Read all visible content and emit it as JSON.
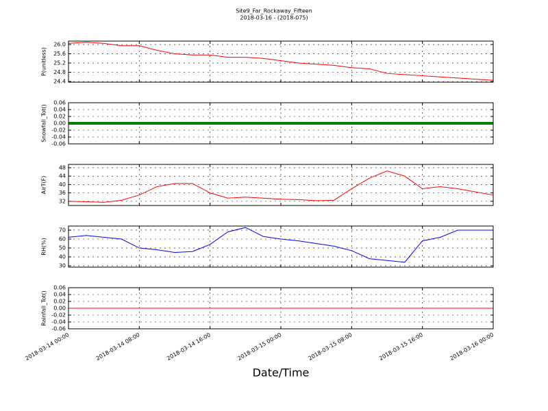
{
  "chart_data": [
    {
      "type": "line",
      "title": "Site9_Far_Rockaway_Fifteen",
      "subtitle": "2018-03-16 - (2018-075)",
      "ylabel": "P(unitless)",
      "x": [
        "2018-03-14 00:00",
        "2018-03-14 02:00",
        "2018-03-14 04:00",
        "2018-03-14 06:00",
        "2018-03-14 08:00",
        "2018-03-14 10:00",
        "2018-03-14 12:00",
        "2018-03-14 14:00",
        "2018-03-14 16:00",
        "2018-03-14 18:00",
        "2018-03-14 20:00",
        "2018-03-14 22:00",
        "2018-03-15 00:00",
        "2018-03-15 02:00",
        "2018-03-15 04:00",
        "2018-03-15 06:00",
        "2018-03-15 08:00",
        "2018-03-15 10:00",
        "2018-03-15 12:00",
        "2018-03-15 14:00",
        "2018-03-15 16:00",
        "2018-03-15 18:00",
        "2018-03-15 20:00",
        "2018-03-15 22:00",
        "2018-03-16 00:00"
      ],
      "values": [
        26.05,
        26.1,
        26.05,
        25.95,
        25.95,
        25.75,
        25.6,
        25.55,
        25.55,
        25.45,
        25.45,
        25.4,
        25.3,
        25.2,
        25.15,
        25.1,
        25.0,
        24.95,
        24.75,
        24.7,
        24.65,
        24.6,
        24.55,
        24.5,
        24.45
      ],
      "color": "#ff0000",
      "line_width": 1,
      "xlim": [
        "2018-03-14 00:00",
        "2018-03-16 00:00"
      ],
      "xticks": [
        "2018-03-14 00:00",
        "2018-03-14 08:00",
        "2018-03-14 16:00",
        "2018-03-15 00:00",
        "2018-03-15 08:00",
        "2018-03-15 16:00",
        "2018-03-16 00:00"
      ],
      "ylim": [
        24.37,
        26.15
      ],
      "yticks": [
        24.4,
        24.8,
        25.2,
        25.6,
        {
          "value": 26,
          "label": "26.0"
        }
      ],
      "grid": true
    },
    {
      "type": "line",
      "ylabel": "Snowfall_Tot()",
      "x": [
        "2018-03-14 00:00",
        "2018-03-14 02:00",
        "2018-03-14 04:00",
        "2018-03-14 06:00",
        "2018-03-14 08:00",
        "2018-03-14 10:00",
        "2018-03-14 12:00",
        "2018-03-14 14:00",
        "2018-03-14 16:00",
        "2018-03-14 18:00",
        "2018-03-14 20:00",
        "2018-03-14 22:00",
        "2018-03-15 00:00",
        "2018-03-15 02:00",
        "2018-03-15 04:00",
        "2018-03-15 06:00",
        "2018-03-15 08:00",
        "2018-03-15 10:00",
        "2018-03-15 12:00",
        "2018-03-15 14:00",
        "2018-03-15 16:00",
        "2018-03-15 18:00",
        "2018-03-15 20:00",
        "2018-03-15 22:00",
        "2018-03-16 00:00"
      ],
      "values": [
        0,
        0,
        0,
        0,
        0,
        0,
        0,
        0,
        0,
        0,
        0,
        0,
        0,
        0,
        0,
        0,
        0,
        0,
        0,
        0,
        0,
        0,
        0,
        0,
        0
      ],
      "color": "#008000",
      "line_width": 4,
      "xlim": [
        "2018-03-14 00:00",
        "2018-03-16 00:00"
      ],
      "xticks": [
        "2018-03-14 00:00",
        "2018-03-14 08:00",
        "2018-03-14 16:00",
        "2018-03-15 00:00",
        "2018-03-15 08:00",
        "2018-03-15 16:00",
        "2018-03-16 00:00"
      ],
      "ylim": [
        -0.06,
        0.06
      ],
      "yticks": [
        -0.06,
        -0.04,
        -0.02,
        {
          "value": 0,
          "label": "0.00"
        },
        0.02,
        0.04,
        0.06
      ],
      "grid": true
    },
    {
      "type": "line",
      "ylabel": "AirT(F)",
      "x": [
        "2018-03-14 00:00",
        "2018-03-14 02:00",
        "2018-03-14 04:00",
        "2018-03-14 06:00",
        "2018-03-14 08:00",
        "2018-03-14 10:00",
        "2018-03-14 12:00",
        "2018-03-14 14:00",
        "2018-03-14 16:00",
        "2018-03-14 18:00",
        "2018-03-14 20:00",
        "2018-03-14 22:00",
        "2018-03-15 00:00",
        "2018-03-15 02:00",
        "2018-03-15 04:00",
        "2018-03-15 06:00",
        "2018-03-15 08:00",
        "2018-03-15 10:00",
        "2018-03-15 12:00",
        "2018-03-15 14:00",
        "2018-03-15 16:00",
        "2018-03-15 18:00",
        "2018-03-15 20:00",
        "2018-03-15 22:00",
        "2018-03-16 00:00"
      ],
      "values": [
        32,
        31.8,
        31.5,
        32.5,
        35,
        39,
        40.5,
        40.5,
        36,
        33.5,
        34,
        33.5,
        33,
        32.8,
        32.3,
        32.5,
        38,
        43,
        46.5,
        44,
        38,
        39,
        38,
        36.5,
        35
      ],
      "color": "#ff0000",
      "line_width": 1,
      "xlim": [
        "2018-03-14 00:00",
        "2018-03-16 00:00"
      ],
      "xticks": [
        "2018-03-14 00:00",
        "2018-03-14 08:00",
        "2018-03-14 16:00",
        "2018-03-15 00:00",
        "2018-03-15 08:00",
        "2018-03-15 16:00",
        "2018-03-16 00:00"
      ],
      "ylim": [
        30,
        49.6
      ],
      "yticks": [
        32,
        36,
        40,
        44,
        48
      ],
      "grid": true
    },
    {
      "type": "line",
      "ylabel": "RH(%)",
      "x": [
        "2018-03-14 00:00",
        "2018-03-14 02:00",
        "2018-03-14 04:00",
        "2018-03-14 06:00",
        "2018-03-14 08:00",
        "2018-03-14 10:00",
        "2018-03-14 12:00",
        "2018-03-14 14:00",
        "2018-03-14 16:00",
        "2018-03-14 18:00",
        "2018-03-14 20:00",
        "2018-03-14 22:00",
        "2018-03-15 00:00",
        "2018-03-15 02:00",
        "2018-03-15 04:00",
        "2018-03-15 06:00",
        "2018-03-15 08:00",
        "2018-03-15 10:00",
        "2018-03-15 12:00",
        "2018-03-15 14:00",
        "2018-03-15 16:00",
        "2018-03-15 18:00",
        "2018-03-15 20:00",
        "2018-03-15 22:00",
        "2018-03-16 00:00"
      ],
      "values": [
        62,
        64,
        62,
        60,
        50,
        48,
        45,
        46,
        54,
        68,
        73,
        63,
        60,
        58,
        55,
        52,
        47,
        38,
        36,
        34,
        58,
        62,
        70,
        70,
        70
      ],
      "color": "#0000ff",
      "line_width": 1,
      "xlim": [
        "2018-03-14 00:00",
        "2018-03-16 00:00"
      ],
      "xticks": [
        "2018-03-14 00:00",
        "2018-03-14 08:00",
        "2018-03-14 16:00",
        "2018-03-15 00:00",
        "2018-03-15 08:00",
        "2018-03-15 16:00",
        "2018-03-16 00:00"
      ],
      "ylim": [
        28.5,
        74.6
      ],
      "yticks": [
        30,
        40,
        50,
        60,
        70
      ],
      "grid": true
    },
    {
      "type": "line",
      "ylabel": "Rainfall_Tot()",
      "xlabel": "Date/Time",
      "x": [
        "2018-03-14 00:00",
        "2018-03-14 02:00",
        "2018-03-14 04:00",
        "2018-03-14 06:00",
        "2018-03-14 08:00",
        "2018-03-14 10:00",
        "2018-03-14 12:00",
        "2018-03-14 14:00",
        "2018-03-14 16:00",
        "2018-03-14 18:00",
        "2018-03-14 20:00",
        "2018-03-14 22:00",
        "2018-03-15 00:00",
        "2018-03-15 02:00",
        "2018-03-15 04:00",
        "2018-03-15 06:00",
        "2018-03-15 08:00",
        "2018-03-15 10:00",
        "2018-03-15 12:00",
        "2018-03-15 14:00",
        "2018-03-15 16:00",
        "2018-03-15 18:00",
        "2018-03-15 20:00",
        "2018-03-15 22:00",
        "2018-03-16 00:00"
      ],
      "values": [
        0,
        0,
        0,
        0,
        0,
        0,
        0,
        0,
        0,
        0,
        0,
        0,
        0,
        0,
        0,
        0,
        0,
        0,
        0,
        0,
        0,
        0,
        0,
        0,
        0
      ],
      "color": "#ff0000",
      "line_width": 1,
      "xlim": [
        "2018-03-14 00:00",
        "2018-03-16 00:00"
      ],
      "xticks": [
        "2018-03-14 00:00",
        "2018-03-14 08:00",
        "2018-03-14 16:00",
        "2018-03-15 00:00",
        "2018-03-15 08:00",
        "2018-03-15 16:00",
        "2018-03-16 00:00"
      ],
      "ylim": [
        -0.06,
        0.06
      ],
      "yticks": [
        -0.06,
        -0.04,
        -0.02,
        {
          "value": 0,
          "label": "0.00"
        },
        0.02,
        0.04,
        0.06
      ],
      "grid": true
    }
  ]
}
